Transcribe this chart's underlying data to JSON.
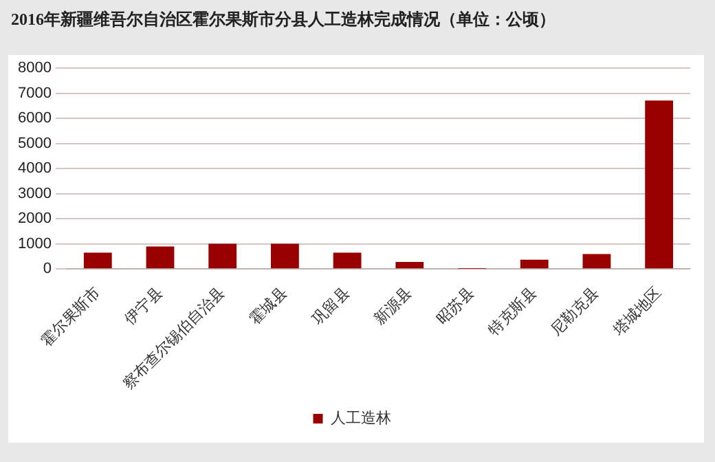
{
  "chart_data": {
    "type": "bar",
    "title": "2016年新疆维吾尔自治区霍尔果斯市分县人工造林完成情况（单位：公顷）",
    "categories": [
      "霍尔果斯市",
      "伊宁县",
      "察布查尔锡伯自治县",
      "霍城县",
      "巩留县",
      "新源县",
      "昭苏县",
      "特克斯县",
      "尼勒克县",
      "塔城地区"
    ],
    "series": [
      {
        "name": "人工造林",
        "color": "#990000",
        "values": [
          650,
          900,
          1010,
          1010,
          650,
          280,
          10,
          370,
          600,
          6710
        ]
      }
    ],
    "ylim": [
      0,
      8000
    ],
    "yticks": [
      0,
      1000,
      2000,
      3000,
      4000,
      5000,
      6000,
      7000,
      8000
    ],
    "grid": "y",
    "legend": "bottom"
  }
}
